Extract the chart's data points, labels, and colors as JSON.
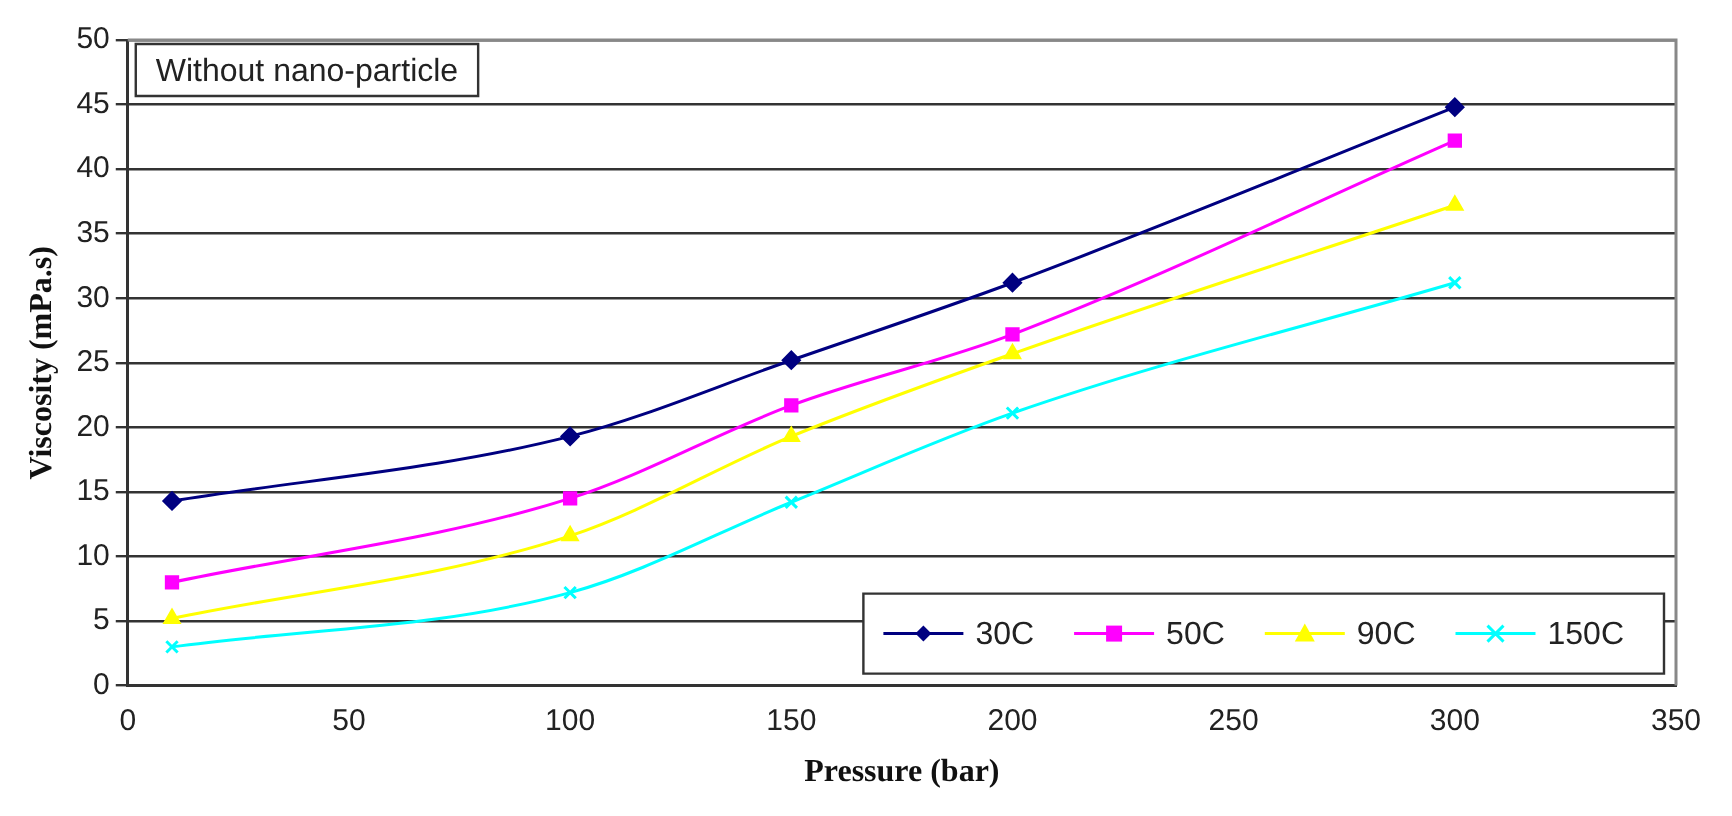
{
  "chart_data": {
    "type": "line",
    "xlabel": "Pressure (bar)",
    "ylabel": "Viscosity (mPa.s)",
    "annotations": [
      "Without nano-particle"
    ],
    "x": [
      10,
      100,
      150,
      200,
      300
    ],
    "series": [
      {
        "name": "30C",
        "color": "#000080",
        "marker": "diamond",
        "values": [
          14.3,
          19.3,
          25.2,
          31.2,
          44.8
        ]
      },
      {
        "name": "50C",
        "color": "#ff00ff",
        "marker": "square",
        "values": [
          8.0,
          14.5,
          21.7,
          27.2,
          42.2
        ]
      },
      {
        "name": "90C",
        "color": "#ffff00",
        "marker": "triangle",
        "values": [
          5.2,
          11.6,
          19.3,
          25.7,
          37.2
        ]
      },
      {
        "name": "150C",
        "color": "#00ffff",
        "marker": "cross",
        "values": [
          3.0,
          7.2,
          14.2,
          21.1,
          31.2
        ]
      }
    ],
    "xlim": [
      0,
      350
    ],
    "xticks": [
      0,
      50,
      100,
      150,
      200,
      250,
      300,
      350
    ],
    "ylim": [
      0,
      50
    ],
    "yticks": [
      0,
      5,
      10,
      15,
      20,
      25,
      30,
      35,
      40,
      45,
      50
    ],
    "grid": "y",
    "legend": "bottom right",
    "line_style": "solid"
  }
}
